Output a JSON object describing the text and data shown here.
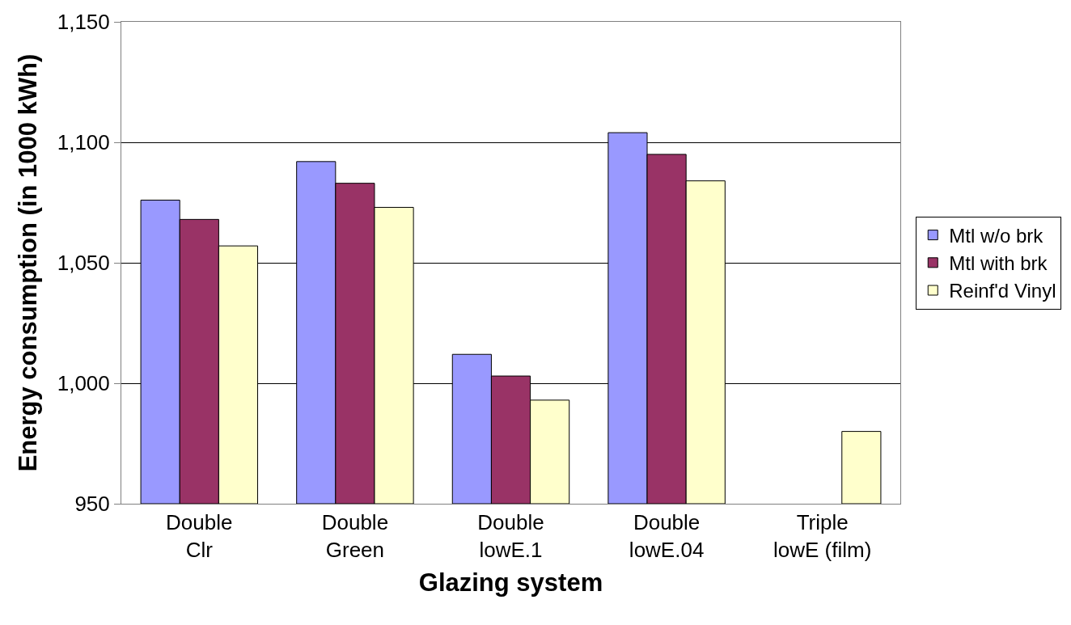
{
  "chart_data": {
    "type": "bar",
    "xlabel": "Glazing system",
    "ylabel": "Energy consumption (in 1000 kWh)",
    "categories": [
      "Double\nClr",
      "Double\nGreen",
      "Double\nlowE.1",
      "Double\nlowE.04",
      "Triple\nlowE (film)"
    ],
    "series": [
      {
        "name": "Mtl w/o brk",
        "color": "#9999ff",
        "values": [
          1076,
          1092,
          1012,
          1104,
          null
        ]
      },
      {
        "name": "Mtl with brk",
        "color": "#993366",
        "values": [
          1068,
          1083,
          1003,
          1095,
          null
        ]
      },
      {
        "name": "Reinf'd Vinyl",
        "color": "#ffffcc",
        "values": [
          1057,
          1073,
          993,
          1084,
          980
        ]
      }
    ],
    "ylim": [
      950,
      1150
    ],
    "yticks": [
      {
        "value": 950,
        "label": "950"
      },
      {
        "value": 1000,
        "label": "1,000"
      },
      {
        "value": 1050,
        "label": "1,050"
      },
      {
        "value": 1100,
        "label": "1,100"
      },
      {
        "value": 1150,
        "label": "1,150"
      }
    ],
    "grid": "y",
    "legend": "right"
  }
}
